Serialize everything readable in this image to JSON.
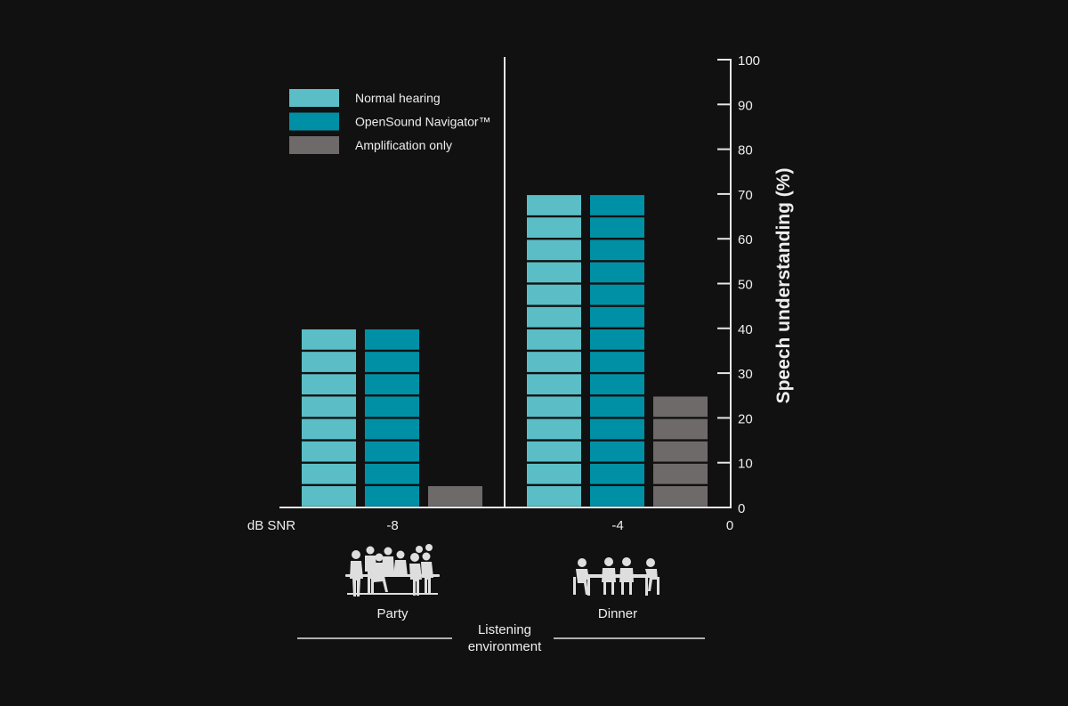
{
  "colors": {
    "background": "#111111",
    "axis": "#e6e6e6",
    "text": "#eeeeee",
    "normal_hearing": "#5bbec6",
    "opensound": "#0090a6",
    "amplification": "#6e6a6a"
  },
  "chart_data": {
    "type": "bar",
    "categories": [
      "-8",
      "-4"
    ],
    "series": [
      {
        "name": "Normal hearing",
        "values": [
          40,
          70
        ],
        "color": "#5bbec6"
      },
      {
        "name": "OpenSound Navigator™",
        "values": [
          40,
          70
        ],
        "color": "#0090a6"
      },
      {
        "name": "Amplification only",
        "values": [
          5,
          25
        ],
        "color": "#6e6a6a"
      }
    ],
    "ylabel": "Speech understanding (%)",
    "xlabel": "dB SNR",
    "ylim": [
      0,
      100
    ],
    "yticks": [
      "0",
      "10",
      "20",
      "30",
      "40",
      "50",
      "60",
      "70",
      "80",
      "90",
      "100"
    ],
    "y_axis_position": "right",
    "segment_size": 5,
    "legend_position": "top-left",
    "environments": [
      "Party",
      "Dinner"
    ],
    "environment_icons": [
      "party-people-icon",
      "dinner-table-icon"
    ],
    "environment_axis_label": [
      "Listening",
      "environment"
    ],
    "grid": false
  }
}
